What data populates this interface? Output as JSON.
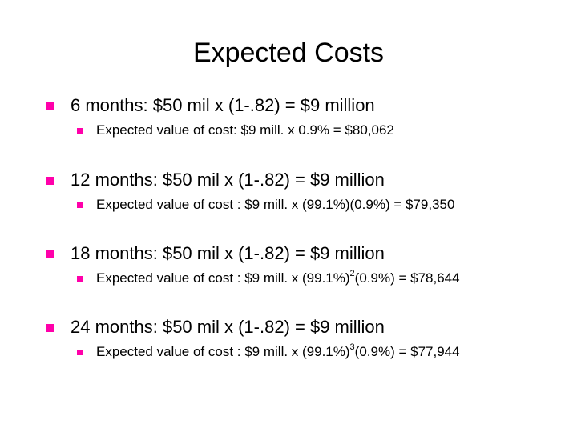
{
  "slide": {
    "title": "Expected Costs",
    "bullet_color": "#ff00aa",
    "items": [
      {
        "main": "6 months:   $50 mil x (1-.82) = $9 million",
        "sub": "Expected value of cost: $9 mill. x 0.9% = $80,062"
      },
      {
        "main": "12 months:  $50 mil x (1-.82) = $9 million",
        "sub": "Expected value of cost : $9 mill. x (99.1%)(0.9%) = $79,350"
      },
      {
        "main": "18 months:  $50 mil x (1-.82) = $9 million",
        "sub_before": "Expected value of cost : $9 mill. x (99.1%)",
        "sub_sup": "2",
        "sub_after": "(0.9%) = $78,644"
      },
      {
        "main": "24 months:  $50 mil x (1-.82) = $9 million",
        "sub_before": "Expected value of cost : $9 mill. x (99.1%)",
        "sub_sup": "3",
        "sub_after": "(0.9%) = $77,944"
      }
    ]
  }
}
